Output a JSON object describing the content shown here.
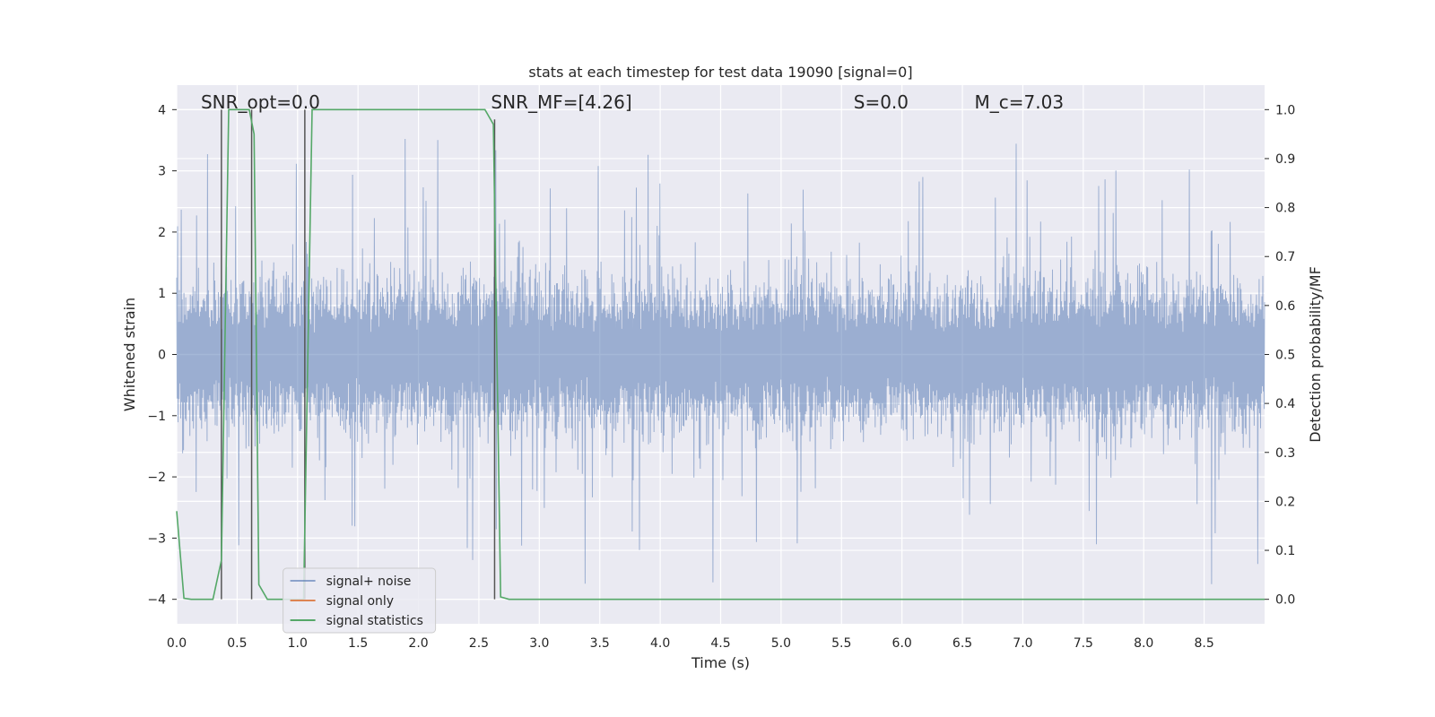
{
  "chart_data": {
    "type": "line",
    "title": "stats at each timestep for test data 19090 [signal=0]",
    "xlabel": "Time (s)",
    "ylabel_left": "Whitened strain",
    "ylabel_right": "Detection probability/MF",
    "xlim": [
      0.0,
      9.0
    ],
    "ylim_left": [
      -4.4,
      4.4
    ],
    "ylim_right": [
      -0.05,
      1.05
    ],
    "x_ticks": [
      0.0,
      0.5,
      1.0,
      1.5,
      2.0,
      2.5,
      3.0,
      3.5,
      4.0,
      4.5,
      5.0,
      5.5,
      6.0,
      6.5,
      7.0,
      7.5,
      8.0,
      8.5
    ],
    "x_tick_labels": [
      "0.0",
      "0.5",
      "1.0",
      "1.5",
      "2.0",
      "2.5",
      "3.0",
      "3.5",
      "4.0",
      "4.5",
      "5.0",
      "5.5",
      "6.0",
      "6.5",
      "7.0",
      "7.5",
      "8.0",
      "8.5"
    ],
    "y_left_ticks": [
      4,
      3,
      2,
      1,
      0,
      -1,
      -2,
      -3,
      -4
    ],
    "y_left_tick_labels": [
      "4",
      "3",
      "2",
      "1",
      "0",
      "−1",
      "−2",
      "−3",
      "−4"
    ],
    "y_right_ticks": [
      1.0,
      0.9,
      0.8,
      0.7,
      0.6,
      0.5,
      0.4,
      0.3,
      0.2,
      0.1,
      0.0
    ],
    "y_right_tick_labels": [
      "1.0",
      "0.9",
      "0.8",
      "0.7",
      "0.6",
      "0.5",
      "0.4",
      "0.3",
      "0.2",
      "0.1",
      "0.0"
    ],
    "grid": true,
    "legend_placement": "lower-left",
    "annotations": [
      {
        "text": "SNR_opt=0.0",
        "at_x": 0.2
      },
      {
        "text": "SNR_MF=[4.26]",
        "at_x": 2.6
      },
      {
        "text": "S=0.0",
        "at_x": 5.6
      },
      {
        "text": "M_c=7.03",
        "at_x": 6.6
      }
    ],
    "series": [
      {
        "name": "signal+ noise",
        "color": "#4c72b0",
        "axis": "left",
        "kind": "noise",
        "typical_amplitude": 1.6,
        "peak_amplitude": 4.0
      },
      {
        "name": "signal only",
        "color": "#dd8452",
        "axis": "left",
        "kind": "line",
        "x": [],
        "y": []
      },
      {
        "name": "signal statistics",
        "color": "#55a868",
        "axis": "right",
        "kind": "line",
        "x": [
          0.0,
          0.06,
          0.12,
          0.3,
          0.37,
          0.43,
          0.6,
          0.64,
          0.68,
          0.75,
          1.05,
          1.12,
          2.55,
          2.62,
          2.68,
          2.75,
          9.0
        ],
        "y": [
          0.18,
          0.002,
          0.0,
          0.0,
          0.08,
          1.0,
          1.0,
          0.95,
          0.03,
          0.0,
          0.0,
          1.0,
          1.0,
          0.97,
          0.005,
          0.0,
          0.0
        ]
      }
    ],
    "event_markers": [
      {
        "x": 0.37,
        "y_top": 1.0
      },
      {
        "x": 0.62,
        "y_top": 1.0
      },
      {
        "x": 1.06,
        "y_top": 1.0
      },
      {
        "x": 2.63,
        "y_top": 0.98
      }
    ],
    "colors": {
      "plot_background": "#eaeaf2",
      "grid": "#ffffff",
      "marker_line": "#555555"
    }
  }
}
